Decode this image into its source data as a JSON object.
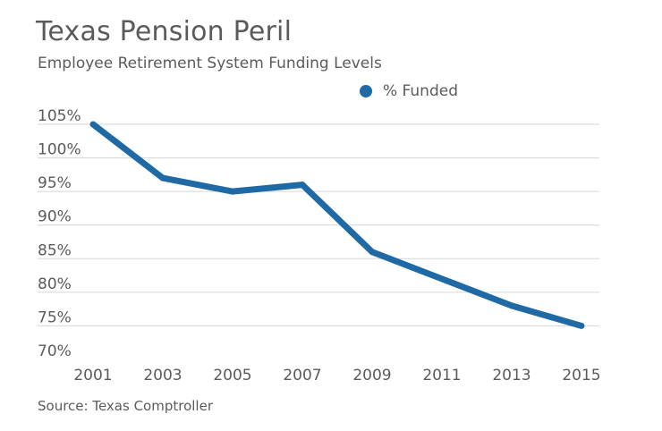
{
  "title": "Texas Pension Peril",
  "subtitle": "Employee Retirement System Funding Levels",
  "source": "Source: Texas Comptroller",
  "colors": {
    "series": "#1f6aa5",
    "grid": "#d6d6d6",
    "text": "#5b5b5b"
  },
  "chart_data": {
    "type": "line",
    "title": "Texas Pension Peril",
    "subtitle": "Employee Retirement System Funding Levels",
    "x": [
      2001,
      2003,
      2005,
      2007,
      2009,
      2011,
      2013,
      2015
    ],
    "x_tick_labels": [
      "2001",
      "2003",
      "2005",
      "2007",
      "2009",
      "2011",
      "2013",
      "2015"
    ],
    "y_tick_values": [
      70,
      75,
      80,
      85,
      90,
      95,
      100,
      105
    ],
    "y_tick_labels": [
      "70%",
      "75%",
      "80%",
      "85%",
      "90%",
      "95%",
      "100%",
      "105%"
    ],
    "ylim": [
      70,
      105
    ],
    "xlim": [
      2001,
      2015
    ],
    "xlabel": "",
    "ylabel": "",
    "grid": true,
    "legend_position": "top",
    "series": [
      {
        "name": "% Funded",
        "values": [
          105,
          97,
          95,
          96,
          86,
          82,
          78,
          75
        ]
      }
    ]
  }
}
